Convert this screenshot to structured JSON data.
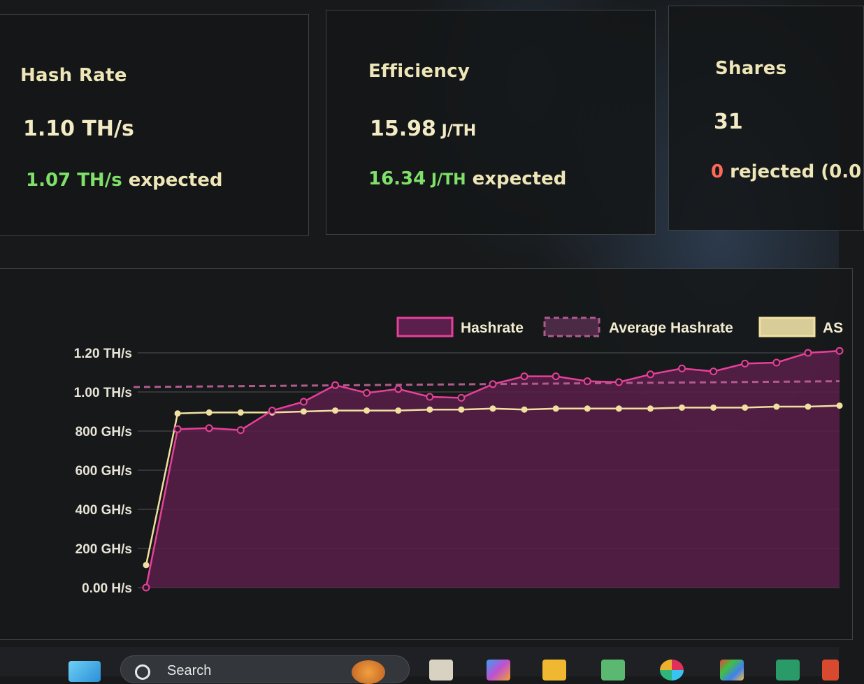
{
  "cards": {
    "hash_rate": {
      "title": "Hash Rate",
      "value": "1.10 TH/s",
      "expected_value": "1.07 TH/s",
      "expected_suffix": " expected"
    },
    "efficiency": {
      "title": "Efficiency",
      "value_number": "15.98",
      "value_unit": " J/TH",
      "expected_number": "16.34",
      "expected_unit": " J/TH",
      "expected_suffix": " expected"
    },
    "shares": {
      "title": "Shares",
      "value": "31",
      "rejected_count": "0",
      "rejected_suffix": " rejected (0.0"
    }
  },
  "colors": {
    "hashrate": "#e8409a",
    "asic": "#f0e0a0",
    "fill": "#5a1f4a",
    "green": "#7fe06a",
    "red": "#ff6a55"
  },
  "chart_data": {
    "type": "line",
    "legend": [
      {
        "name": "Hashrate",
        "style": "solid-box"
      },
      {
        "name": "Average Hashrate",
        "style": "dashed-box"
      },
      {
        "name": "AS",
        "style": "solid-box-yellow"
      }
    ],
    "y_ticks": [
      "0.00 H/s",
      "200 GH/s",
      "400 GH/s",
      "600 GH/s",
      "800 GH/s",
      "1.00 TH/s",
      "1.20 TH/s"
    ],
    "ylim": [
      0,
      1200
    ],
    "y_unit": "GH/s",
    "grid": true,
    "series": [
      {
        "name": "Hashrate",
        "values": [
          0,
          810,
          815,
          805,
          905,
          950,
          1035,
          995,
          1015,
          975,
          970,
          1040,
          1080,
          1080,
          1055,
          1050,
          1090,
          1120,
          1105,
          1145,
          1150,
          1200,
          1210
        ]
      },
      {
        "name": "Average Hashrate",
        "values": [
          1025,
          1055
        ]
      },
      {
        "name": "AS",
        "values": [
          115,
          890,
          895,
          895,
          895,
          900,
          905,
          905,
          905,
          910,
          910,
          915,
          910,
          915,
          915,
          915,
          915,
          920,
          920,
          920,
          925,
          925,
          930
        ]
      }
    ]
  },
  "taskbar": {
    "search_label": "Search"
  }
}
